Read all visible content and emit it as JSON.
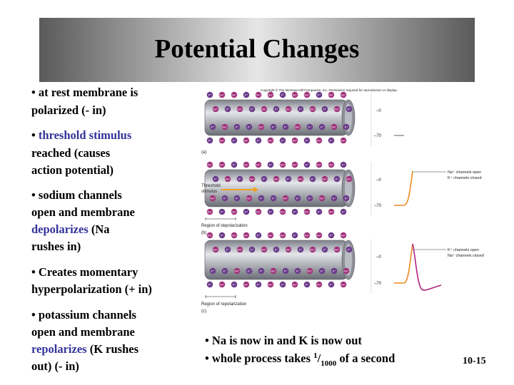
{
  "title": "Potential Changes",
  "bullets": [
    {
      "lines": [
        [
          {
            "text": "• at rest membrane is"
          }
        ],
        [
          {
            "text": "polarized (- in)"
          }
        ]
      ]
    },
    {
      "lines": [
        [
          {
            "text": "• "
          },
          {
            "text": "threshold stimulus",
            "color": "#33339a"
          }
        ],
        [
          {
            "text": "reached (causes"
          }
        ],
        [
          {
            "text": "action potential)"
          }
        ]
      ]
    },
    {
      "lines": [
        [
          {
            "text": "• sodium channels"
          }
        ],
        [
          {
            "text": "open and membrane"
          }
        ],
        [
          {
            "text": "depolarizes",
            "color": "#33339a"
          },
          {
            "text": " (Na"
          }
        ],
        [
          {
            "text": "rushes in)"
          }
        ]
      ]
    },
    {
      "lines": [
        [
          {
            "text": "• Creates momentary"
          }
        ],
        [
          {
            "text": "hyperpolarization (+ in)"
          }
        ]
      ]
    },
    {
      "lines": [
        [
          {
            "text": "• potassium channels"
          }
        ],
        [
          {
            "text": "open and membrane"
          }
        ],
        [
          {
            "text": "repolarizes",
            "color": "#33339a"
          },
          {
            "text": " (K rushes"
          }
        ],
        [
          {
            "text": "out) (- in)"
          }
        ]
      ]
    }
  ],
  "figure": {
    "copyright": "Copyright © The McGraw-Hill Companies, Inc. Permission required for reproduction or display.",
    "ions": {
      "na": "Na⁺",
      "k": "K⁺"
    },
    "zero": "–0",
    "minus70": "–70",
    "panel_a": "(a)",
    "panel_b": "(b)",
    "panel_c": "(c)",
    "threshold_stimulus": [
      "Threshold",
      "stimulus"
    ],
    "region_depolarization": "Region of depolarization",
    "region_repolarization": "Region of repolarization",
    "na_open": "Na⁺ channels open",
    "k_closed": "K⁺ channels closed",
    "k_open": "K⁺ channels open",
    "na_closed": "Na⁺ channels closed"
  },
  "footer": {
    "line1": "• Na is now in and K is now out",
    "line2": {
      "pre": "• whole process takes ",
      "sup": "1",
      "slash": "/",
      "sub": "1000",
      "post": " of a second"
    },
    "page": "10-15"
  }
}
